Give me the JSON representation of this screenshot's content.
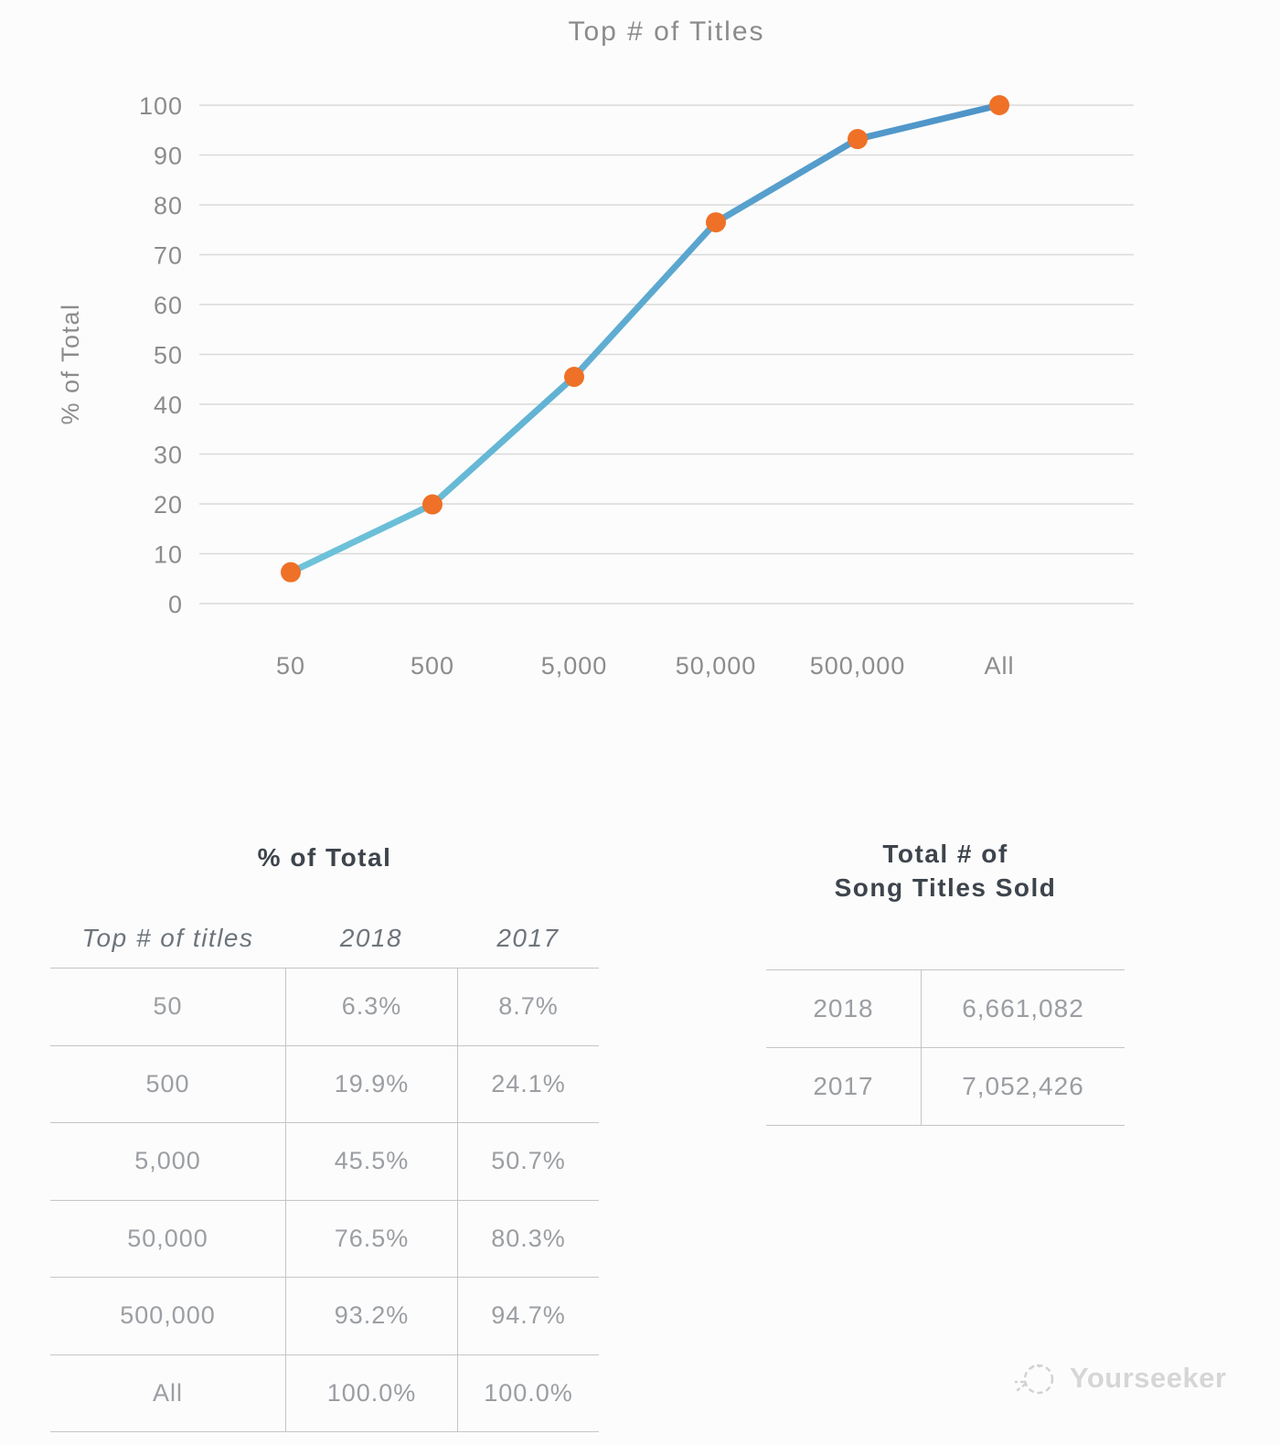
{
  "chart_data": {
    "type": "line",
    "title": "Top # of Titles",
    "xlabel": "",
    "ylabel": "% of Total",
    "categories": [
      "50",
      "500",
      "5,000",
      "50,000",
      "500,000",
      "All"
    ],
    "series": [
      {
        "name": "2018",
        "values": [
          6.3,
          19.9,
          45.5,
          76.5,
          93.2,
          100.0
        ]
      }
    ],
    "ylim": [
      0,
      100
    ],
    "ytick_step": 10,
    "grid": "horizontal",
    "legend": "none",
    "colors": {
      "line_gradient_start": "#6ec4da",
      "line_gradient_end": "#4e93c8",
      "marker": "#ee7127",
      "gridline": "#d9d9d9",
      "tick_text": "#8c8c8c"
    }
  },
  "left_table": {
    "title": "% of Total",
    "columns": [
      "Top # of titles",
      "2018",
      "2017"
    ],
    "rows": [
      {
        "label": "50",
        "v2018": "6.3%",
        "v2017": "8.7%"
      },
      {
        "label": "500",
        "v2018": "19.9%",
        "v2017": "24.1%"
      },
      {
        "label": "5,000",
        "v2018": "45.5%",
        "v2017": "50.7%"
      },
      {
        "label": "50,000",
        "v2018": "76.5%",
        "v2017": "80.3%"
      },
      {
        "label": "500,000",
        "v2018": "93.2%",
        "v2017": "94.7%"
      },
      {
        "label": "All",
        "v2018": "100.0%",
        "v2017": "100.0%"
      }
    ]
  },
  "right_table": {
    "title_line1": "Total # of",
    "title_line2": "Song Titles Sold",
    "rows": [
      {
        "year": "2018",
        "value": "6,661,082"
      },
      {
        "year": "2017",
        "value": "7,052,426"
      }
    ]
  },
  "watermark": {
    "label": "Yourseeker"
  }
}
